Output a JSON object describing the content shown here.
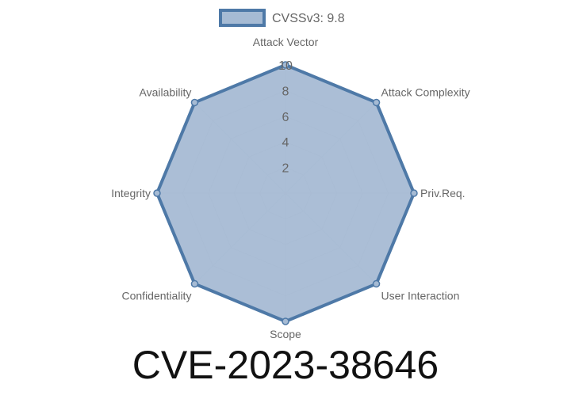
{
  "title": "CVE-2023-38646",
  "chart_data": {
    "type": "radar",
    "categories": [
      "Attack Vector",
      "Attack Complexity",
      "Priv.Req.",
      "User Interaction",
      "Scope",
      "Confidentiality",
      "Integrity",
      "Availability"
    ],
    "series": [
      {
        "name": "CVSSv3: 9.8",
        "values": [
          10,
          10,
          10,
          10,
          10,
          10,
          10,
          10
        ]
      }
    ],
    "rlim": [
      0,
      10
    ],
    "ticks": [
      "2",
      "4",
      "6",
      "8",
      "10"
    ],
    "legend": "top",
    "grid": true,
    "colors": {
      "line": "#4e79a7",
      "fill": "#a6bbd4",
      "grid": "#cccccc"
    }
  }
}
